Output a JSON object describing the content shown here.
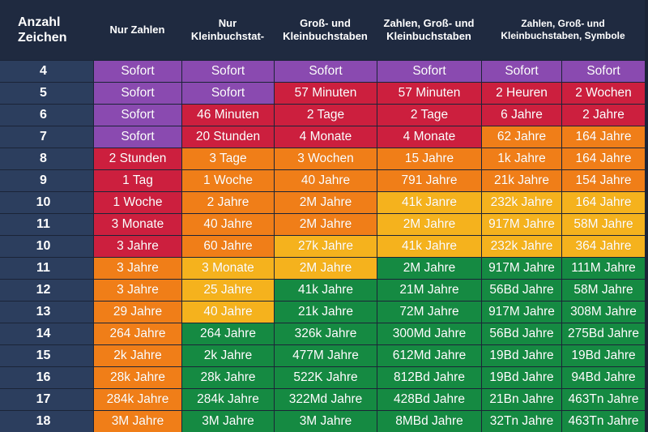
{
  "headers": [
    "Anzahl\nZeichen",
    "Nur Zahlen",
    "Nur\nKleinbuchstat-",
    "Groß- und\nKleinbuchstaben",
    "Zahlen, Groß- und\nKleinbuchstaben",
    "Zahlen, Groß- und\nKleinbuchstaben, Symbole"
  ],
  "colors": {
    "purple": "#8a4ab0",
    "red": "#cc1f3e",
    "orange": "#f07e18",
    "yellow": "#f5b21d",
    "green": "#158a42"
  },
  "rows": [
    {
      "label": "4",
      "cells": [
        [
          "Sofort",
          "purple"
        ],
        [
          "Sofort",
          "purple"
        ],
        [
          "Sofort",
          "purple"
        ],
        [
          "Sofort",
          "purple"
        ],
        [
          "Sofort",
          "purple"
        ],
        [
          "Sofort",
          "purple"
        ]
      ]
    },
    {
      "label": "5",
      "cells": [
        [
          "Sofort",
          "purple"
        ],
        [
          "Sofort",
          "purple"
        ],
        [
          "57 Minuten",
          "red"
        ],
        [
          "57 Minuten",
          "red"
        ],
        [
          "2 Heuren",
          "red"
        ],
        [
          "2 Wochen",
          "red"
        ]
      ]
    },
    {
      "label": "6",
      "cells": [
        [
          "Sofort",
          "purple"
        ],
        [
          "46 Minuten",
          "red"
        ],
        [
          "2 Tage",
          "red"
        ],
        [
          "2 Tage",
          "red"
        ],
        [
          "6 Jahre",
          "red"
        ],
        [
          "2 Jahre",
          "red"
        ]
      ]
    },
    {
      "label": "7",
      "cells": [
        [
          "Sofort",
          "purple"
        ],
        [
          "20 Stunden",
          "red"
        ],
        [
          "4 Monate",
          "red"
        ],
        [
          "4 Monate",
          "red"
        ],
        [
          "62 Jahre",
          "orange"
        ],
        [
          "164 Jahre",
          "orange"
        ]
      ]
    },
    {
      "label": "8",
      "cells": [
        [
          "2 Stunden",
          "red"
        ],
        [
          "3 Tage",
          "orange"
        ],
        [
          "3 Wochen",
          "orange"
        ],
        [
          "15 Jahre",
          "orange"
        ],
        [
          "1k Jahre",
          "orange"
        ],
        [
          "164 Jahre",
          "orange"
        ]
      ]
    },
    {
      "label": "9",
      "cells": [
        [
          "1 Tag",
          "red"
        ],
        [
          "1 Woche",
          "orange"
        ],
        [
          "40 Jahre",
          "orange"
        ],
        [
          "791 Jahre",
          "orange"
        ],
        [
          "21k Jahre",
          "orange"
        ],
        [
          "154 Jahre",
          "orange"
        ]
      ]
    },
    {
      "label": "10",
      "cells": [
        [
          "1 Woche",
          "red"
        ],
        [
          "2 Jahre",
          "orange"
        ],
        [
          "2M Jahre",
          "orange"
        ],
        [
          "41k Janre",
          "yellow"
        ],
        [
          "232k Jahre",
          "yellow"
        ],
        [
          "164 Jahre",
          "yellow"
        ]
      ]
    },
    {
      "label": "11",
      "cells": [
        [
          "3 Monate",
          "red"
        ],
        [
          "40 Jahre",
          "orange"
        ],
        [
          "2M Jahre",
          "orange"
        ],
        [
          "2M Jahre",
          "yellow"
        ],
        [
          "917M Jahre",
          "yellow"
        ],
        [
          "58M Jahre",
          "yellow"
        ]
      ]
    },
    {
      "label": "10",
      "cells": [
        [
          "3 Jahre",
          "red"
        ],
        [
          "60 Jahre",
          "orange"
        ],
        [
          "27k Jahre",
          "yellow"
        ],
        [
          "41k Jahre",
          "yellow"
        ],
        [
          "232k Jahre",
          "yellow"
        ],
        [
          "364 Jahre",
          "yellow"
        ]
      ]
    },
    {
      "label": "11",
      "cells": [
        [
          "3 Jahre",
          "orange"
        ],
        [
          "3 Monate",
          "yellow"
        ],
        [
          "2M Jahre",
          "yellow"
        ],
        [
          "2M Jahre",
          "green"
        ],
        [
          "917M Jahre",
          "green"
        ],
        [
          "111M Jahre",
          "green"
        ]
      ]
    },
    {
      "label": "12",
      "cells": [
        [
          "3 Jahre",
          "orange"
        ],
        [
          "25 Jahre",
          "yellow"
        ],
        [
          "41k Jahre",
          "green"
        ],
        [
          "21M Jahre",
          "green"
        ],
        [
          "56Bd Jahre",
          "green"
        ],
        [
          "58M Jahre",
          "green"
        ]
      ]
    },
    {
      "label": "13",
      "cells": [
        [
          "29 Jahre",
          "orange"
        ],
        [
          "40 Jahre",
          "yellow"
        ],
        [
          "21k Jahre",
          "green"
        ],
        [
          "72M Jahre",
          "green"
        ],
        [
          "917M Jahre",
          "green"
        ],
        [
          "308M Jahre",
          "green"
        ]
      ]
    },
    {
      "label": "14",
      "cells": [
        [
          "264 Jahre",
          "orange"
        ],
        [
          "264 Jahre",
          "green"
        ],
        [
          "326k Jahre",
          "green"
        ],
        [
          "300Md Jahre",
          "green"
        ],
        [
          "56Bd Jahre",
          "green"
        ],
        [
          "275Bd Jahre",
          "green"
        ]
      ]
    },
    {
      "label": "15",
      "cells": [
        [
          "2k Jahre",
          "orange"
        ],
        [
          "2k Jahre",
          "green"
        ],
        [
          "477M Jahre",
          "green"
        ],
        [
          "612Md Jahre",
          "green"
        ],
        [
          "19Bd Jahre",
          "green"
        ],
        [
          "19Bd Jahre",
          "green"
        ]
      ]
    },
    {
      "label": "16",
      "cells": [
        [
          "28k Jahre",
          "orange"
        ],
        [
          "28k Jahre",
          "green"
        ],
        [
          "522K Jahre",
          "green"
        ],
        [
          "812Bd Jahre",
          "green"
        ],
        [
          "19Bd Jahre",
          "green"
        ],
        [
          "94Bd Jahre",
          "green"
        ]
      ]
    },
    {
      "label": "17",
      "cells": [
        [
          "284k Jahre",
          "orange"
        ],
        [
          "284k Jahre",
          "green"
        ],
        [
          "322Md Jahre",
          "green"
        ],
        [
          "428Bd Jahre",
          "green"
        ],
        [
          "21Bn Jahre",
          "green"
        ],
        [
          "463Tn Jahre",
          "green"
        ]
      ]
    },
    {
      "label": "18",
      "cells": [
        [
          "3M Jahre",
          "orange"
        ],
        [
          "3M Jahre",
          "green"
        ],
        [
          "3M Jahre",
          "green"
        ],
        [
          "8MBd Jahre",
          "green"
        ],
        [
          "32Tn Jahre",
          "green"
        ],
        [
          "463Tn Jahre",
          "green"
        ]
      ]
    }
  ]
}
